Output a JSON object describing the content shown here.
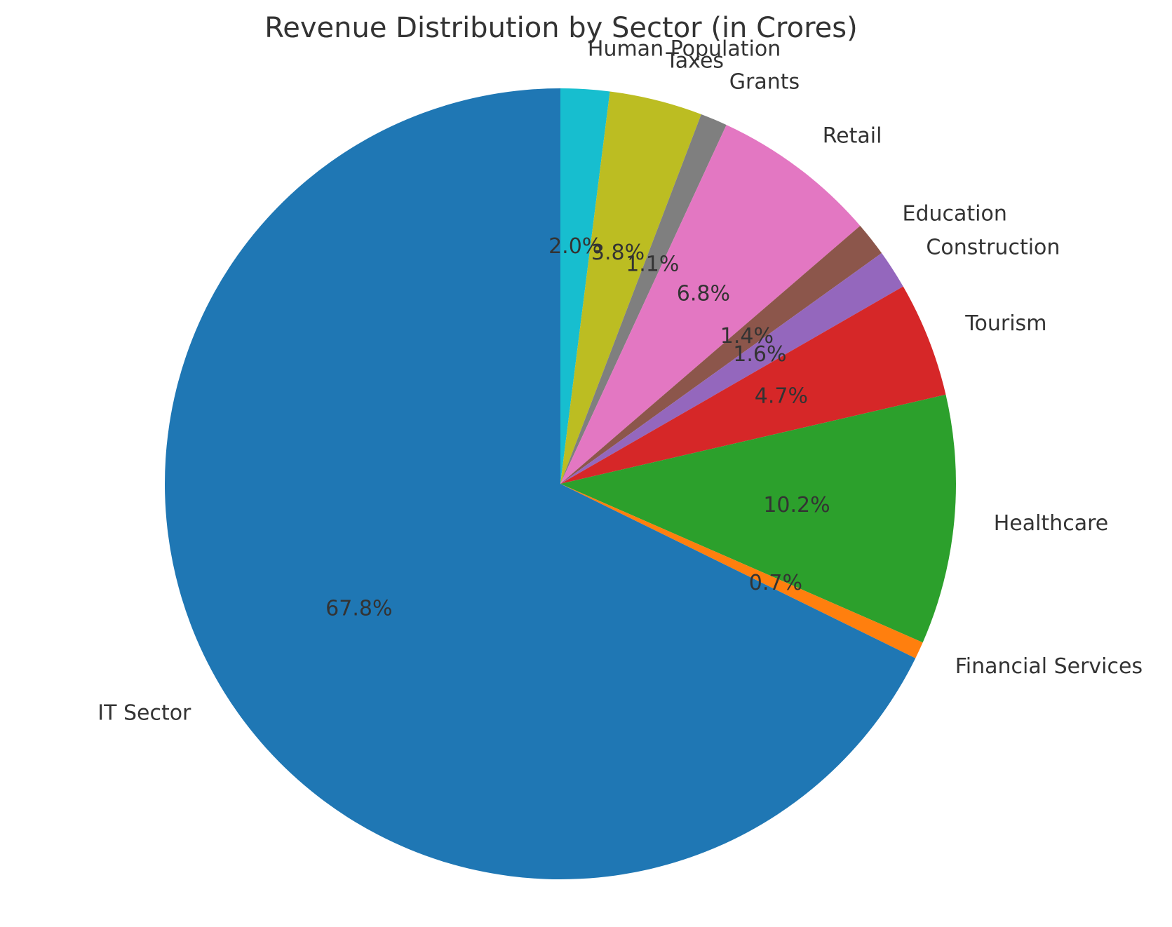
{
  "chart_data": {
    "type": "pie",
    "title": "Revenue Distribution by Sector (in Crores)",
    "start_angle_deg": 90,
    "direction": "clockwise",
    "slices": [
      {
        "label": "Human Population",
        "percent": 2.0,
        "display": "2.0%",
        "color": "#17becf"
      },
      {
        "label": "Taxes",
        "percent": 3.8,
        "display": "3.8%",
        "color": "#bcbd22"
      },
      {
        "label": "Grants",
        "percent": 1.1,
        "display": "1.1%",
        "color": "#7f7f7f"
      },
      {
        "label": "Retail",
        "percent": 6.8,
        "display": "6.8%",
        "color": "#e377c2"
      },
      {
        "label": "Education",
        "percent": 1.4,
        "display": "1.4%",
        "color": "#8c564b"
      },
      {
        "label": "Construction",
        "percent": 1.6,
        "display": "1.6%",
        "color": "#9467bd"
      },
      {
        "label": "Tourism",
        "percent": 4.7,
        "display": "4.7%",
        "color": "#d62728"
      },
      {
        "label": "Healthcare",
        "percent": 10.2,
        "display": "10.2%",
        "color": "#2ca02c"
      },
      {
        "label": "Financial Services",
        "percent": 0.7,
        "display": "0.7%",
        "color": "#ff7f0e"
      },
      {
        "label": "IT Sector",
        "percent": 67.8,
        "display": "67.8%",
        "color": "#1f77b4"
      }
    ]
  }
}
